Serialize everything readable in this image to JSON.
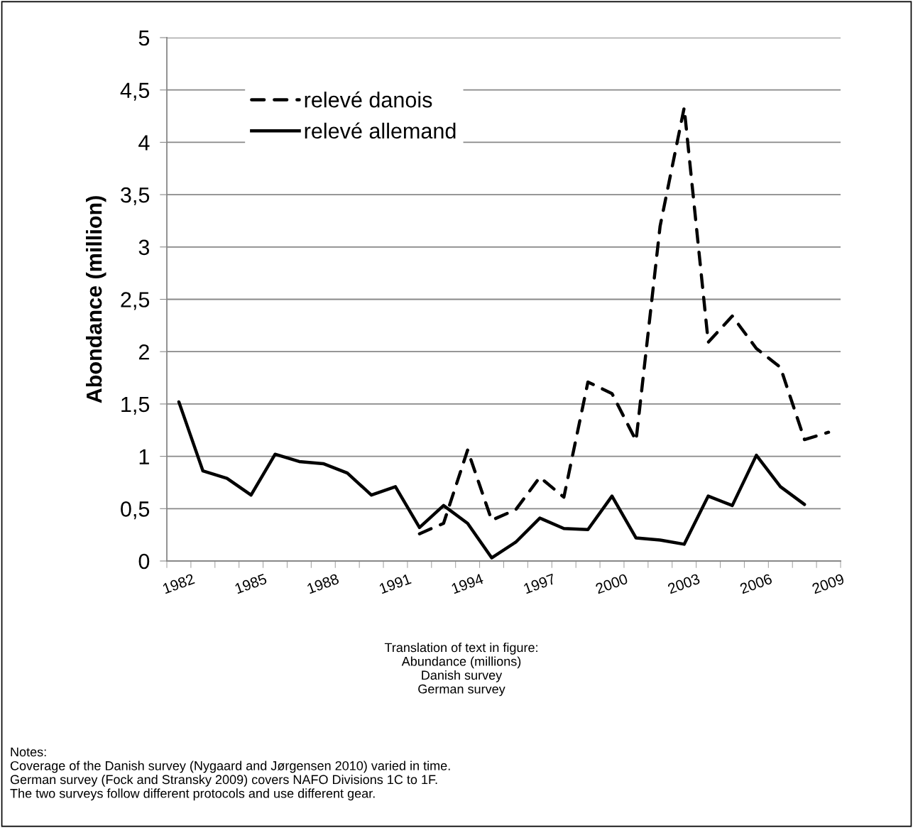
{
  "chart_data": {
    "type": "line",
    "ylabel": "Abondance (million)",
    "categories": [
      "1982",
      null,
      null,
      "1985",
      null,
      null,
      "1988",
      null,
      null,
      "1991",
      null,
      null,
      "1994",
      null,
      null,
      "1997",
      null,
      null,
      "2000",
      null,
      null,
      "2003",
      null,
      null,
      "2006",
      null,
      null,
      "2009"
    ],
    "series": [
      {
        "name": "relevé danois",
        "color": "#000000",
        "line_style": "dashed",
        "values": [
          null,
          null,
          null,
          null,
          null,
          null,
          null,
          null,
          null,
          null,
          0.26,
          0.36,
          1.06,
          0.39,
          0.49,
          0.8,
          0.61,
          1.71,
          1.6,
          1.15,
          3.2,
          4.33,
          2.09,
          2.34,
          2.03,
          1.85,
          1.16,
          1.23
        ]
      },
      {
        "name": "relevé allemand",
        "color": "#000000",
        "line_style": "solid",
        "values": [
          1.52,
          0.86,
          0.79,
          0.63,
          1.02,
          0.95,
          0.93,
          0.84,
          0.63,
          0.71,
          0.32,
          0.53,
          0.36,
          0.03,
          0.18,
          0.41,
          0.31,
          0.3,
          0.62,
          0.22,
          0.2,
          0.16,
          0.62,
          0.53,
          1.01,
          0.71,
          0.54,
          null
        ]
      }
    ],
    "ylim": [
      0,
      5
    ],
    "yticks": [
      0,
      {
        "value": 0.5,
        "label": "0,5"
      },
      1,
      {
        "value": 1.5,
        "label": "1,5"
      },
      2,
      {
        "value": 2.5,
        "label": "2,5"
      },
      3,
      {
        "value": 3.5,
        "label": "3,5"
      },
      4,
      {
        "value": 4.5,
        "label": "4,5"
      },
      5
    ],
    "grid": "y",
    "legend": "top left",
    "marker": "none",
    "annotations": [
      "Translation of text in figure:\nAbundance (millions)\nDanish survey\nGerman survey",
      "Notes:\nCoverage of the Danish survey (Nygaard and Jørgensen 2010) varied in time.\nGerman survey (Fock and Stransky 2009) covers NAFO Divisions 1C to 1F.\nThe two surveys follow different protocols and use different gear."
    ]
  }
}
